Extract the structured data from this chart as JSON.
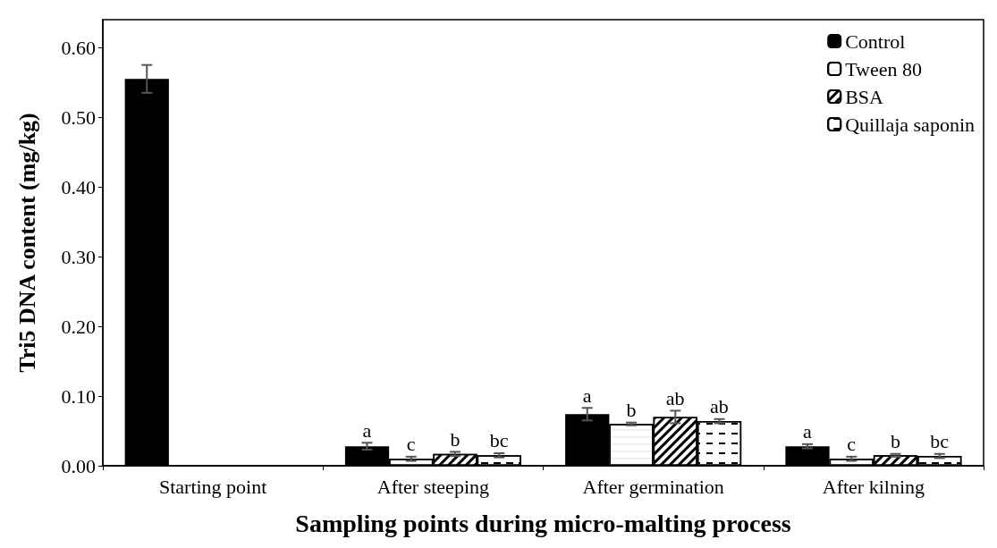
{
  "chart_data": {
    "type": "bar",
    "xlabel": "Sampling points during micro-malting process",
    "ylabel": "Tri5 DNA content (mg/kg)",
    "categories": [
      "Starting point",
      "After steeping",
      "After germination",
      "After kilning"
    ],
    "series": [
      {
        "name": "Control",
        "color": "#000000",
        "values": [
          0.555,
          0.028,
          0.074,
          0.028
        ],
        "errors": [
          0.02,
          0.005,
          0.009,
          0.003
        ],
        "value_labels": [
          null,
          "a",
          "a",
          "a"
        ]
      },
      {
        "name": "Tween 80",
        "color": "#ffffff",
        "values": [
          null,
          0.01,
          0.06,
          0.01
        ],
        "errors": [
          null,
          0.003,
          0.002,
          0.003
        ],
        "value_labels": [
          null,
          "c",
          "b",
          "c"
        ]
      },
      {
        "name": "BSA",
        "color": "#ffffff",
        "values": [
          null,
          0.017,
          0.07,
          0.015
        ],
        "errors": [
          null,
          0.003,
          0.009,
          0.002
        ],
        "value_labels": [
          null,
          "b",
          "ab",
          "b"
        ]
      },
      {
        "name": "Quillaja saponin",
        "color": "#ffffff",
        "values": [
          null,
          0.015,
          0.064,
          0.014
        ],
        "errors": [
          null,
          0.003,
          0.003,
          0.003
        ],
        "value_labels": [
          null,
          "bc",
          "ab",
          "bc"
        ]
      }
    ],
    "ylim": [
      0,
      0.64
    ],
    "yticks": [
      {
        "value": 0,
        "label": "0.00"
      },
      {
        "value": 0.1,
        "label": "0.10"
      },
      {
        "value": 0.2,
        "label": "0.20"
      },
      {
        "value": 0.3,
        "label": "0.30"
      },
      {
        "value": 0.4,
        "label": "0.40"
      },
      {
        "value": 0.5,
        "label": "0.50"
      },
      {
        "value": 0.6,
        "label": "0.60"
      }
    ],
    "grid": false,
    "legend": "top right"
  }
}
